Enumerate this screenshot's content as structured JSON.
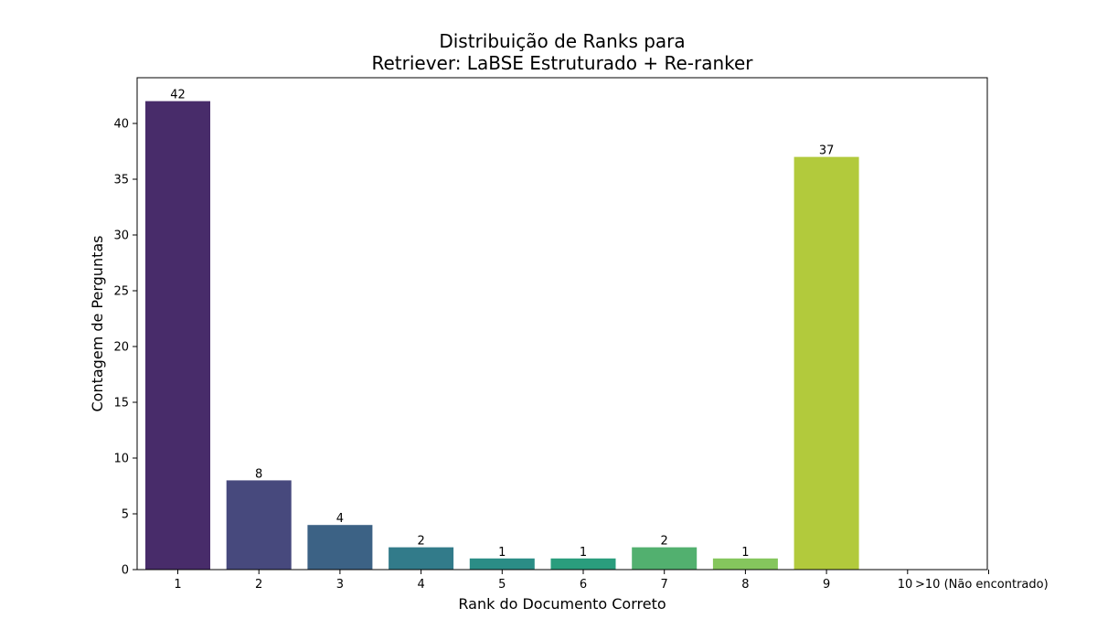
{
  "chart_data": {
    "type": "bar",
    "title_lines": [
      "Distribuição de Ranks para",
      "Retriever: LaBSE Estruturado + Re-ranker"
    ],
    "xlabel": "Rank do Documento Correto",
    "ylabel": "Contagem de Perguntas",
    "categories": [
      "1",
      "2",
      "3",
      "4",
      "5",
      "6",
      "7",
      "8",
      "9",
      "10",
      ">10 (Não encontrado)"
    ],
    "values": [
      42,
      8,
      4,
      2,
      1,
      1,
      2,
      1,
      37,
      0,
      null
    ],
    "data_labels": [
      "42",
      "8",
      "4",
      "2",
      "1",
      "1",
      "2",
      "1",
      "37",
      "",
      ""
    ],
    "bar_colors": [
      "#482c6a",
      "#47497d",
      "#3c6285",
      "#327b8a",
      "#2b8d86",
      "#2a9d7d",
      "#52b06f",
      "#85c65d",
      "#b2ca3c",
      "",
      ""
    ],
    "ylim": [
      0,
      44.1
    ],
    "yticks": [
      0,
      5,
      10,
      15,
      20,
      25,
      30,
      35,
      40
    ],
    "grid": false,
    "legend": "none"
  }
}
